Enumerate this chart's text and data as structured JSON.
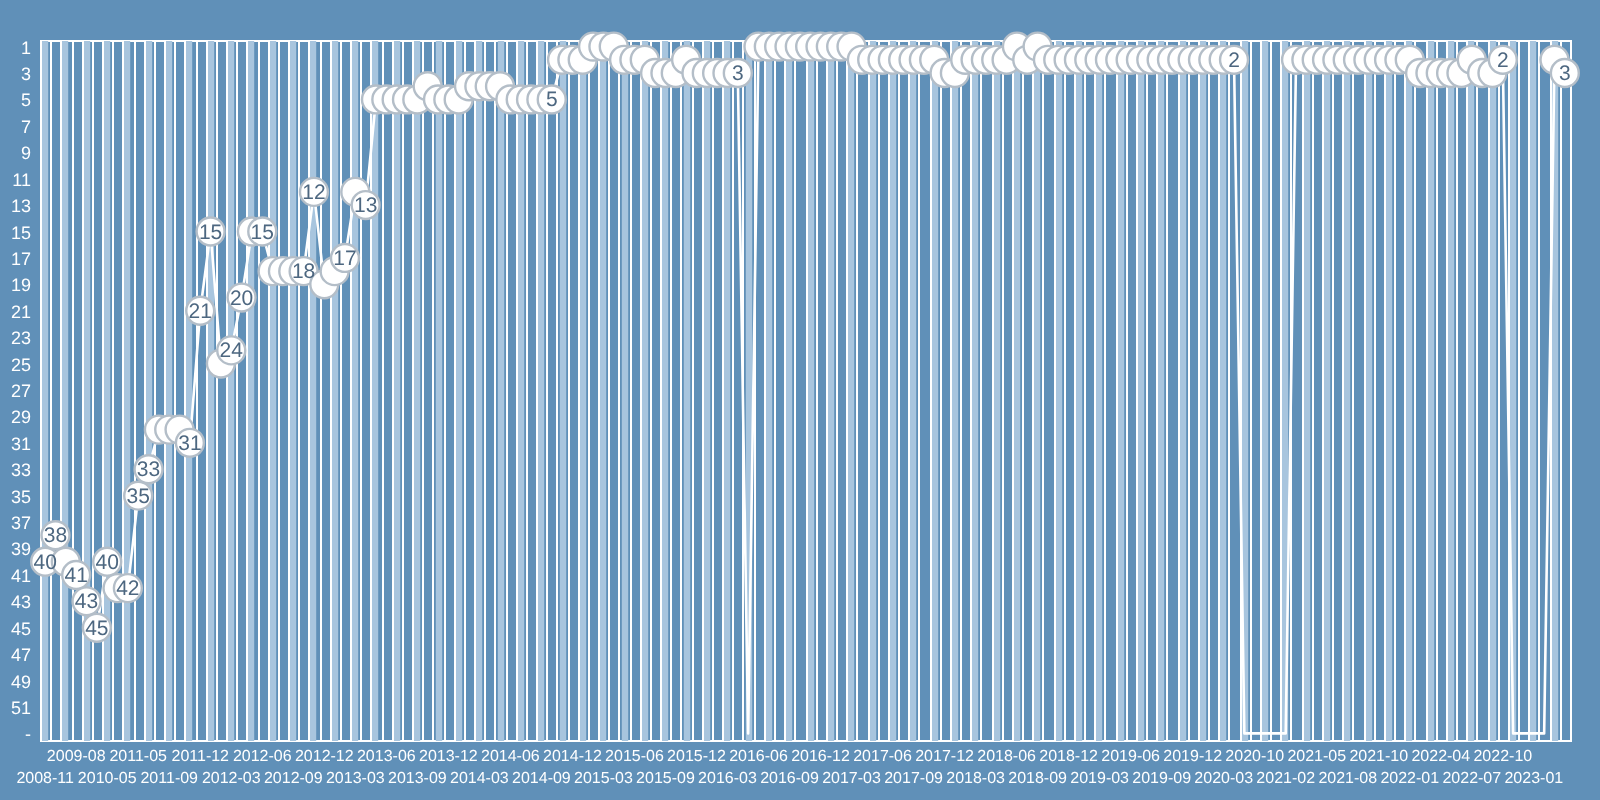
{
  "chart_data": {
    "type": "line",
    "categories": [
      "2008-11",
      null,
      null,
      "2009-08",
      null,
      null,
      "2010-05",
      null,
      null,
      "2011-05",
      null,
      null,
      "2011-09",
      null,
      null,
      "2011-12",
      null,
      null,
      "2012-03",
      null,
      null,
      "2012-06",
      null,
      null,
      "2012-09",
      null,
      null,
      "2012-12",
      null,
      null,
      "2013-03",
      null,
      null,
      "2013-06",
      null,
      null,
      "2013-09",
      null,
      null,
      "2013-12",
      null,
      null,
      "2014-03",
      null,
      null,
      "2014-06",
      null,
      null,
      "2014-09",
      null,
      null,
      "2014-12",
      null,
      null,
      "2015-03",
      null,
      null,
      "2015-06",
      null,
      null,
      "2015-09",
      null,
      null,
      "2015-12",
      null,
      null,
      "2016-03",
      null,
      null,
      "2016-06",
      null,
      null,
      "2016-09",
      null,
      null,
      "2016-12",
      null,
      null,
      "2017-03",
      null,
      null,
      "2017-06",
      null,
      null,
      "2017-09",
      null,
      null,
      "2017-12",
      null,
      null,
      "2018-03",
      null,
      null,
      "2018-06",
      null,
      null,
      "2018-09",
      null,
      null,
      "2018-12",
      null,
      null,
      "2019-03",
      null,
      null,
      "2019-06",
      null,
      null,
      "2019-09",
      null,
      null,
      "2019-12",
      null,
      null,
      "2020-03",
      null,
      null,
      "2020-10",
      null,
      null,
      "2021-02",
      null,
      null,
      "2021-05",
      null,
      null,
      "2021-08",
      null,
      null,
      "2021-10",
      null,
      null,
      "2022-01",
      null,
      null,
      "2022-04",
      null,
      null,
      "2022-07",
      null,
      null,
      "2022-10",
      null,
      null,
      "2023-01",
      null,
      null,
      null
    ],
    "series": [
      {
        "color": "#ffffff",
        "values": [
          40,
          38,
          40,
          41,
          43,
          45,
          40,
          42,
          42,
          35,
          33,
          30,
          30,
          30,
          31,
          21,
          15,
          25,
          24,
          20,
          15,
          15,
          18,
          18,
          18,
          18,
          12,
          19,
          18,
          17,
          12,
          13,
          5,
          5,
          5,
          5,
          5,
          4,
          5,
          5,
          5,
          4,
          4,
          4,
          4,
          5,
          5,
          5,
          5,
          5,
          2,
          2,
          2,
          1,
          1,
          1,
          2,
          2,
          2,
          3,
          3,
          3,
          2,
          3,
          3,
          3,
          3,
          3,
          53,
          1,
          1,
          1,
          1,
          1,
          1,
          1,
          1,
          1,
          1,
          2,
          2,
          2,
          2,
          2,
          2,
          2,
          2,
          3,
          3,
          2,
          2,
          2,
          2,
          2,
          1,
          2,
          1,
          2,
          2,
          2,
          2,
          2,
          2,
          2,
          2,
          2,
          2,
          2,
          2,
          2,
          2,
          2,
          2,
          2,
          2,
          2,
          53,
          53,
          53,
          53,
          53,
          2,
          2,
          2,
          2,
          2,
          2,
          2,
          2,
          2,
          2,
          2,
          2,
          3,
          3,
          3,
          3,
          3,
          2,
          3,
          3,
          2,
          53,
          53,
          53,
          53,
          2,
          3
        ],
        "value_labels": [
          "40",
          "38",
          null,
          "41",
          "43",
          "45",
          "40",
          null,
          "42",
          "35",
          "33",
          null,
          null,
          null,
          "31",
          "21",
          "15",
          null,
          "24",
          "20",
          null,
          "15",
          null,
          null,
          null,
          "18",
          "12",
          null,
          null,
          "17",
          null,
          "13",
          null,
          null,
          null,
          null,
          null,
          null,
          null,
          null,
          null,
          null,
          null,
          null,
          null,
          null,
          null,
          null,
          null,
          "5",
          null,
          null,
          null,
          null,
          null,
          null,
          null,
          null,
          null,
          null,
          null,
          null,
          null,
          null,
          null,
          null,
          null,
          "3",
          null,
          null,
          null,
          null,
          null,
          null,
          null,
          null,
          null,
          null,
          null,
          null,
          null,
          null,
          null,
          null,
          null,
          null,
          null,
          null,
          null,
          null,
          null,
          null,
          null,
          null,
          null,
          null,
          null,
          null,
          null,
          null,
          null,
          null,
          null,
          null,
          null,
          null,
          null,
          null,
          null,
          null,
          null,
          null,
          null,
          null,
          null,
          "2",
          null,
          null,
          null,
          null,
          null,
          null,
          null,
          null,
          null,
          null,
          null,
          null,
          null,
          null,
          null,
          null,
          null,
          null,
          null,
          null,
          null,
          null,
          null,
          null,
          null,
          "2",
          null,
          null,
          null,
          null,
          null,
          "3"
        ]
      }
    ],
    "ylim": [
      53.5,
      0.5
    ],
    "yticks": [
      1,
      3,
      5,
      7,
      9,
      11,
      13,
      15,
      17,
      19,
      21,
      23,
      25,
      27,
      29,
      31,
      33,
      35,
      37,
      39,
      41,
      43,
      45,
      47,
      49,
      51,
      {
        "value": 53,
        "label": "-"
      }
    ],
    "grid": "x",
    "marker": "circle"
  }
}
